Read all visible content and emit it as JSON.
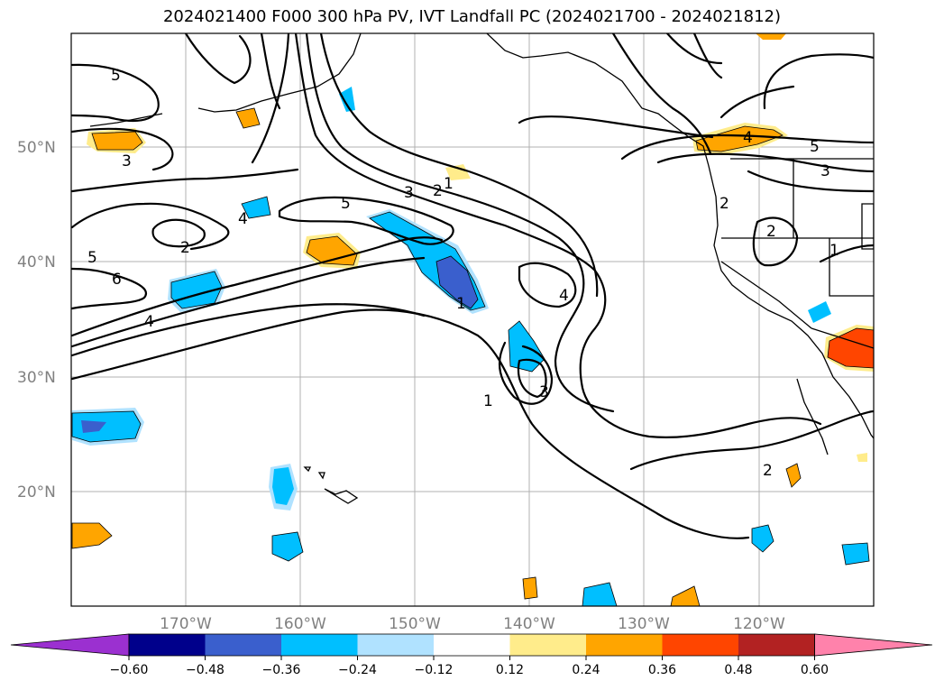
{
  "title": "2024021400 F000 300 hPa PV, IVT Landfall PC (2024021700 - 2024021812)",
  "lat_labels": [
    "50°N",
    "40°N",
    "30°N",
    "20°N"
  ],
  "lon_labels": [
    "170°W",
    "160°W",
    "150°W",
    "140°W",
    "130°W",
    "120°W"
  ],
  "colorbar": {
    "ticks": [
      "−0.60",
      "−0.48",
      "−0.36",
      "−0.24",
      "−0.12",
      "0.12",
      "0.24",
      "0.36",
      "0.48",
      "0.60"
    ],
    "colors": [
      "#9b30d0",
      "#00008b",
      "#3a5fcd",
      "#00bfff",
      "#b0e2ff",
      "#ffffff",
      "#ffec8b",
      "#ffa500",
      "#ff4500",
      "#b22222",
      "#ff82ab"
    ]
  },
  "contour_labels": [
    "5",
    "3",
    "5",
    "2",
    "6",
    "4",
    "4",
    "5",
    "3",
    "2",
    "1",
    "1",
    "4",
    "3",
    "1",
    "4",
    "5",
    "3",
    "2",
    "2",
    "1",
    "2"
  ],
  "chart_data": {
    "type": "map-contour",
    "title": "2024021400 F000 300 hPa PV, IVT Landfall PC (2024021700 - 2024021812)",
    "extent": {
      "lon": [
        -180,
        -110
      ],
      "lat": [
        10,
        60
      ]
    },
    "contour_levels": [
      1,
      2,
      3,
      4,
      5,
      6
    ],
    "fill_levels": [
      -0.6,
      -0.48,
      -0.36,
      -0.24,
      -0.12,
      0.12,
      0.24,
      0.36,
      0.48,
      0.6
    ],
    "grid": true
  }
}
